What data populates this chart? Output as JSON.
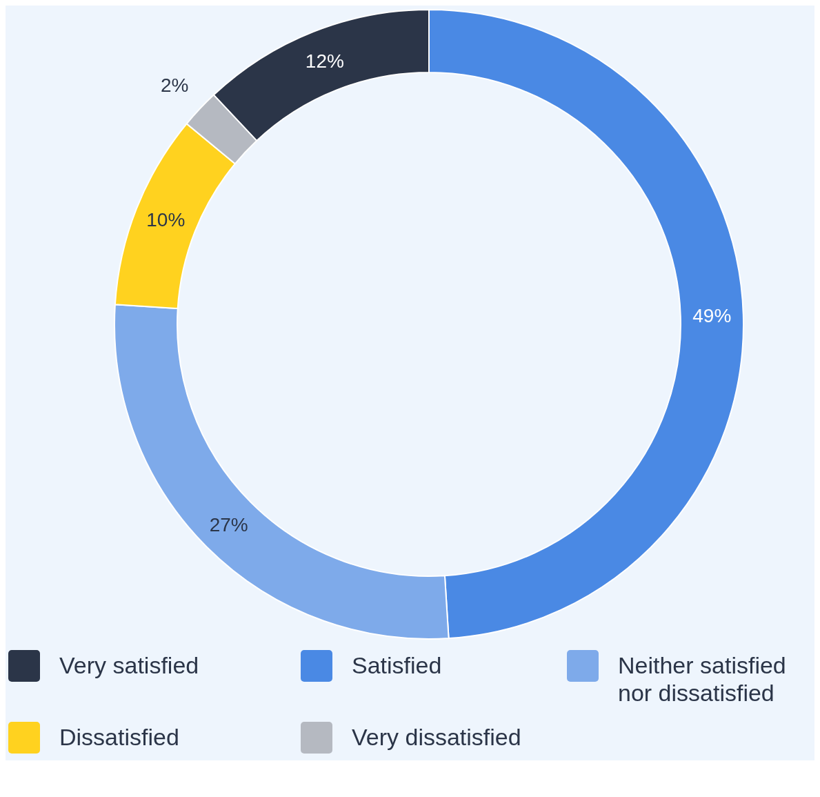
{
  "chart_data": {
    "type": "donut",
    "categories": [
      "Very satisfied",
      "Satisfied",
      "Neither satisfied nor dissatisfied",
      "Dissatisfied",
      "Very dissatisfied"
    ],
    "values": [
      12,
      49,
      27,
      10,
      2
    ],
    "colors": [
      "#2b3548",
      "#4a89e4",
      "#7eaaea",
      "#ffd21f",
      "#b5b9c1"
    ],
    "value_labels": [
      "12%",
      "49%",
      "27%",
      "10%",
      "2%"
    ],
    "legend": "bottom"
  }
}
